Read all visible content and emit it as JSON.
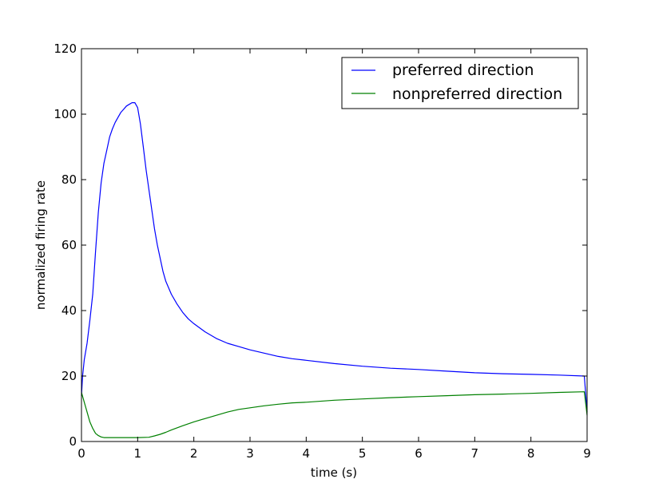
{
  "chart_data": {
    "type": "line",
    "title": "",
    "xlabel": "time (s)",
    "ylabel": "normalized firing rate",
    "xlim": [
      0,
      9
    ],
    "ylim": [
      0,
      120
    ],
    "xticks": [
      "0",
      "1",
      "2",
      "3",
      "4",
      "5",
      "6",
      "7",
      "8",
      "9"
    ],
    "yticks": [
      "0",
      "20",
      "40",
      "60",
      "80",
      "100",
      "120"
    ],
    "grid": false,
    "legend_position": "top-right",
    "series": [
      {
        "name": "preferred direction",
        "color": "#0000ff",
        "x": [
          0,
          0.02,
          0.05,
          0.1,
          0.15,
          0.2,
          0.25,
          0.3,
          0.35,
          0.4,
          0.45,
          0.5,
          0.55,
          0.6,
          0.65,
          0.7,
          0.75,
          0.8,
          0.85,
          0.9,
          0.95,
          1.0,
          1.05,
          1.1,
          1.15,
          1.2,
          1.25,
          1.3,
          1.35,
          1.4,
          1.45,
          1.5,
          1.6,
          1.7,
          1.8,
          1.9,
          2.0,
          2.2,
          2.4,
          2.6,
          2.8,
          3.0,
          3.25,
          3.5,
          3.75,
          4.0,
          4.5,
          5.0,
          5.5,
          6.0,
          6.5,
          7.0,
          7.5,
          8.0,
          8.5,
          8.95,
          9.0
        ],
        "y": [
          14,
          20,
          25,
          30,
          37,
          45,
          58,
          70,
          79,
          85,
          89,
          93,
          95.5,
          97.5,
          99,
          100.5,
          101.5,
          102.5,
          103,
          103.5,
          103.5,
          102,
          97,
          90,
          83,
          77,
          71,
          65,
          60,
          56,
          52,
          49,
          45,
          42,
          39.5,
          37.5,
          36,
          33.5,
          31.5,
          30,
          29,
          28,
          27,
          26,
          25.3,
          24.8,
          23.8,
          23,
          22.4,
          22,
          21.5,
          21,
          20.7,
          20.5,
          20.3,
          20,
          9
        ]
      },
      {
        "name": "nonpreferred direction",
        "color": "#008000",
        "x": [
          0,
          0.05,
          0.1,
          0.15,
          0.2,
          0.25,
          0.3,
          0.35,
          0.4,
          0.5,
          0.6,
          0.8,
          1.0,
          1.2,
          1.3,
          1.4,
          1.5,
          1.6,
          1.8,
          2.0,
          2.2,
          2.4,
          2.6,
          2.8,
          3.0,
          3.25,
          3.5,
          3.75,
          4.0,
          4.5,
          5.0,
          5.5,
          6.0,
          6.5,
          7.0,
          7.5,
          8.0,
          8.5,
          8.95,
          9.0
        ],
        "y": [
          15,
          12,
          9,
          6,
          4,
          2.5,
          1.8,
          1.4,
          1.2,
          1.2,
          1.2,
          1.2,
          1.2,
          1.3,
          1.7,
          2.2,
          2.8,
          3.5,
          4.8,
          6,
          7,
          8,
          9,
          9.8,
          10.3,
          10.9,
          11.4,
          11.8,
          12,
          12.6,
          13,
          13.4,
          13.7,
          14,
          14.3,
          14.5,
          14.7,
          15,
          15.2,
          8
        ]
      }
    ]
  }
}
